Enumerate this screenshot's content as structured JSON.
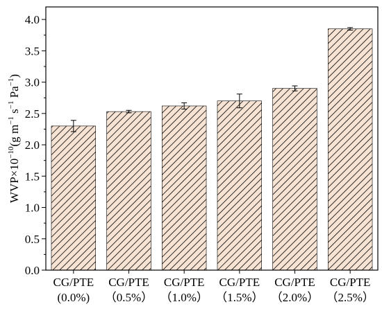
{
  "chart_data": {
    "type": "bar",
    "categories": [
      [
        "CG/PTE",
        "(0.0%)"
      ],
      [
        "CG/PTE",
        "（0.5%）"
      ],
      [
        "CG/PTE",
        "（1.0%）"
      ],
      [
        "CG/PTE",
        "（1.5%）"
      ],
      [
        "CG/PTE",
        "（2.0%）"
      ],
      [
        "CG/PTE",
        "（2.5%）"
      ]
    ],
    "values": [
      2.3,
      2.53,
      2.62,
      2.7,
      2.9,
      3.85
    ],
    "errors": [
      0.09,
      0.02,
      0.05,
      0.11,
      0.04,
      0.02
    ],
    "ylabel": {
      "base": "WVP×10",
      "exp": "−10",
      "unit_open": "(g m",
      "unit_m_exp": "−1",
      "unit_s": " s",
      "unit_s_exp": "−1",
      "unit_pa": " Pa",
      "unit_pa_exp": "−1",
      "unit_close": ")"
    },
    "ylim": [
      0,
      4.2
    ],
    "yticks": [
      "0.0",
      "0.5",
      "1.0",
      "1.5",
      "2.0",
      "2.5",
      "3.0",
      "3.5",
      "4.0"
    ],
    "grid": false,
    "colors": {
      "bar_fill": "#f7e3d3",
      "bar_hatch": "#000000",
      "axis": "#000000"
    }
  }
}
